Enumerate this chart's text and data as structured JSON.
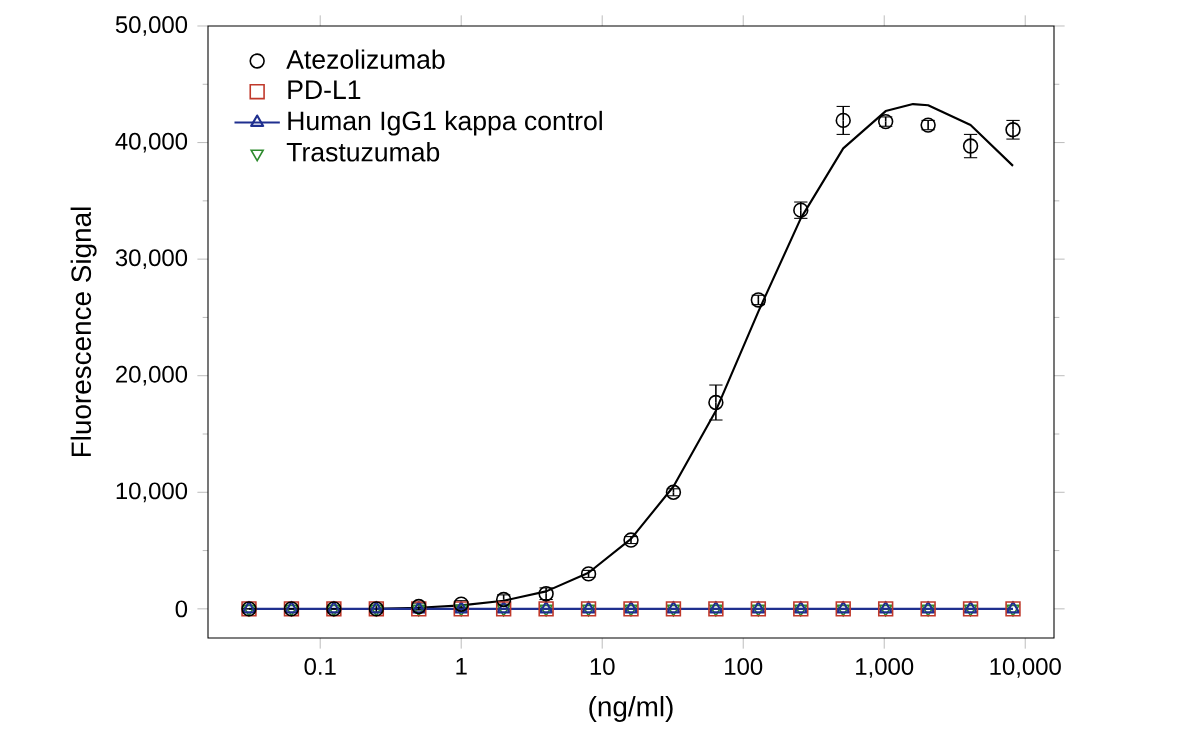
{
  "chart_data": {
    "type": "scatter",
    "xlabel": "(ng/ml)",
    "ylabel": "Fluorescence Signal",
    "x": [
      0.03125,
      0.0625,
      0.125,
      0.25,
      0.5,
      1,
      2,
      4,
      8,
      16,
      32,
      64,
      128,
      256,
      512,
      1024,
      2048,
      4096,
      8192
    ],
    "series": [
      {
        "name": "Atezolizumab",
        "color": "#000000",
        "marker": "circle",
        "values": [
          0,
          0,
          0,
          0,
          200,
          400,
          800,
          1300,
          3000,
          5900,
          10000,
          17700,
          26500,
          34200,
          41900,
          41800,
          41500,
          39700,
          41100
        ],
        "errors": [
          null,
          null,
          null,
          300,
          300,
          300,
          400,
          500,
          300,
          300,
          300,
          1500,
          400,
          700,
          1200,
          400,
          400,
          1000,
          800
        ]
      },
      {
        "name": "PD-L1",
        "color": "#c0392b",
        "marker": "square",
        "values": [
          0,
          0,
          0,
          0,
          0,
          0,
          0,
          0,
          0,
          0,
          0,
          0,
          0,
          0,
          0,
          0,
          0,
          0,
          0
        ]
      },
      {
        "name": "Human IgG1 kappa control",
        "type": "line",
        "color": "#1f2f8f",
        "marker": "triangle",
        "values": [
          0,
          0,
          0,
          0,
          0,
          0,
          0,
          0,
          0,
          0,
          0,
          0,
          0,
          0,
          0,
          0,
          0,
          0,
          0
        ]
      },
      {
        "name": "Trastuzumab",
        "color": "#2e8b2e",
        "marker": "triangle-down",
        "values": [
          0,
          0,
          0,
          0,
          0,
          0,
          0,
          0,
          0,
          0,
          0,
          0,
          0,
          0,
          0,
          0,
          0,
          0,
          0
        ]
      },
      {
        "type": "line",
        "color": "#000000",
        "marker": "none",
        "x": [
          0.25,
          0.5,
          1,
          2,
          4,
          8,
          16,
          32,
          64,
          128,
          256,
          512,
          1024,
          1600,
          2048,
          4096,
          8192
        ],
        "values": [
          0,
          100,
          300,
          700,
          1500,
          3100,
          6000,
          10500,
          17000,
          25500,
          33500,
          39500,
          42700,
          43300,
          43200,
          41500,
          38000
        ]
      }
    ],
    "log": "x",
    "xlim": [
      0.016,
      16000
    ],
    "xticks": [
      0.1,
      1,
      10,
      100,
      {
        "value": 1000,
        "label": "1,000"
      },
      {
        "value": 10000,
        "label": "10,000"
      }
    ],
    "ylim": [
      -2500,
      50000
    ],
    "yticks": [
      0,
      {
        "value": 10000,
        "label": "10,000"
      },
      {
        "value": 20000,
        "label": "20,000"
      },
      {
        "value": 30000,
        "label": "30,000"
      },
      {
        "value": 40000,
        "label": "40,000"
      },
      {
        "value": 50000,
        "label": "50,000"
      }
    ],
    "grid": false,
    "legend": "top left"
  }
}
